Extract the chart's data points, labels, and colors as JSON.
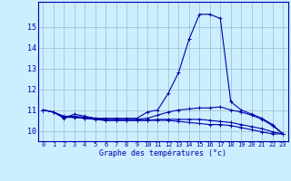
{
  "xlabel": "Graphe des températures (°c)",
  "bg_color": "#cceeff",
  "line_color": "#0000aa",
  "grid_color": "#99bbcc",
  "x_hours": [
    0,
    1,
    2,
    3,
    4,
    5,
    6,
    7,
    8,
    9,
    10,
    11,
    12,
    13,
    14,
    15,
    16,
    17,
    18,
    19,
    20,
    21,
    22,
    23
  ],
  "series": [
    [
      11.0,
      10.9,
      10.6,
      10.8,
      10.7,
      10.6,
      10.6,
      10.6,
      10.6,
      10.6,
      10.9,
      11.0,
      11.8,
      12.8,
      14.4,
      15.6,
      15.6,
      15.4,
      11.4,
      11.0,
      10.8,
      10.6,
      10.3,
      9.85
    ],
    [
      11.0,
      10.9,
      10.7,
      10.7,
      10.65,
      10.6,
      10.55,
      10.55,
      10.55,
      10.55,
      10.6,
      10.75,
      10.9,
      11.0,
      11.05,
      11.1,
      11.1,
      11.15,
      11.0,
      10.9,
      10.75,
      10.55,
      10.25,
      9.85
    ],
    [
      11.0,
      10.9,
      10.65,
      10.65,
      10.6,
      10.55,
      10.5,
      10.5,
      10.5,
      10.5,
      10.5,
      10.55,
      10.55,
      10.55,
      10.55,
      10.55,
      10.5,
      10.45,
      10.4,
      10.3,
      10.2,
      10.1,
      9.95,
      9.85
    ],
    [
      11.0,
      10.9,
      10.65,
      10.65,
      10.6,
      10.55,
      10.5,
      10.5,
      10.5,
      10.5,
      10.5,
      10.5,
      10.5,
      10.45,
      10.4,
      10.35,
      10.3,
      10.3,
      10.25,
      10.15,
      10.05,
      9.95,
      9.85,
      9.85
    ]
  ],
  "ylim": [
    9.5,
    16.2
  ],
  "yticks": [
    10,
    11,
    12,
    13,
    14,
    15
  ],
  "xlim": [
    -0.5,
    23.5
  ],
  "xlabel_fontsize": 6.0,
  "xtick_fontsize": 5.0,
  "ytick_fontsize": 6.0
}
